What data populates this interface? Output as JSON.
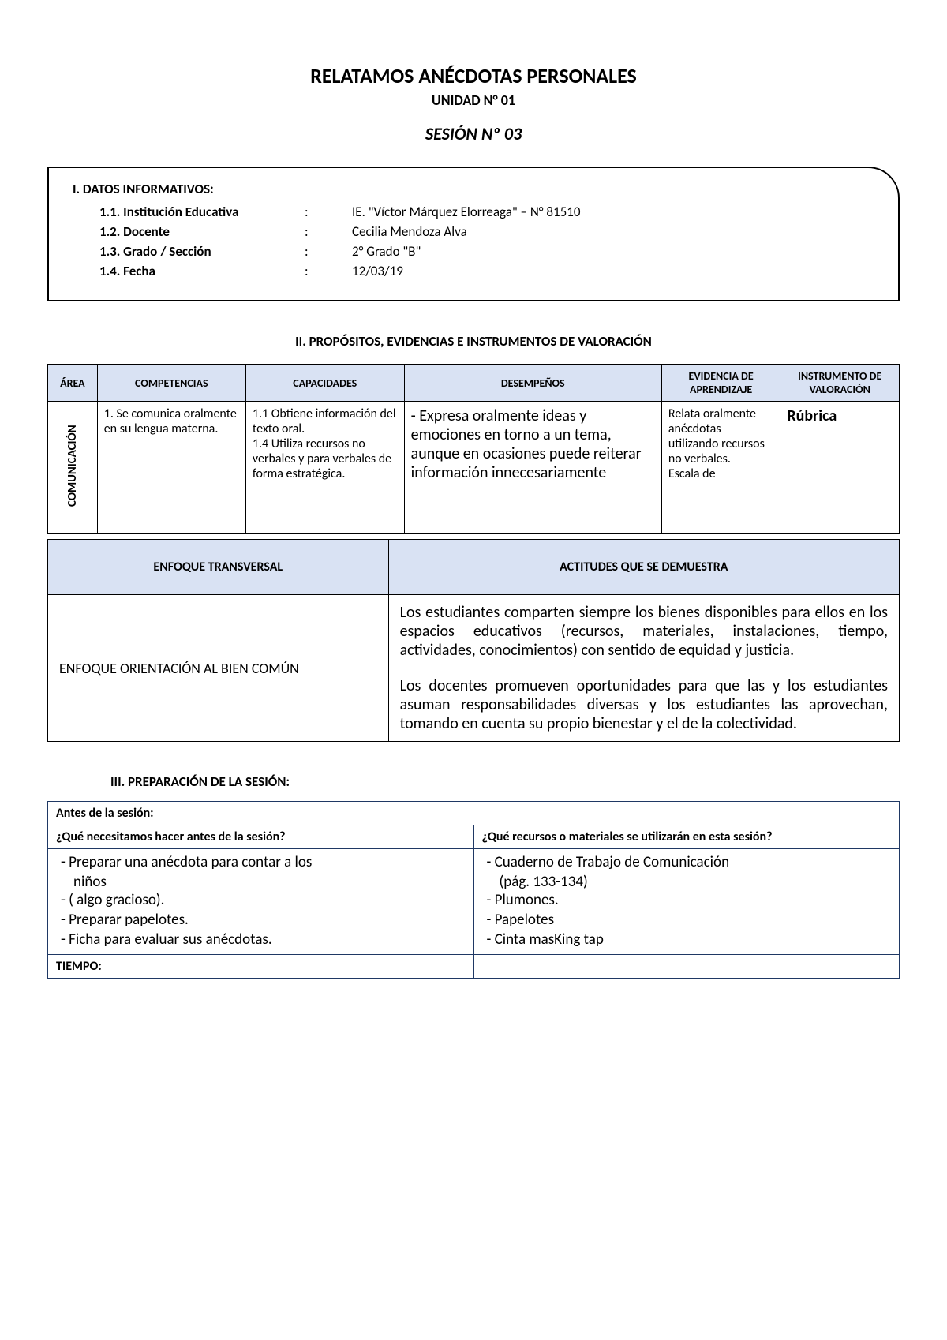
{
  "header": {
    "title": "RELATAMOS ANÉCDOTAS PERSONALES",
    "unit": "UNIDAD N° 01",
    "session": "SESIÓN Nº 03"
  },
  "section1": {
    "heading": "I.    DATOS INFORMATIVOS:",
    "rows": [
      {
        "label": "1.1.  Institución Educativa",
        "colon": ":",
        "value": "IE. \"Víctor Márquez Elorreaga\" – N° 81510"
      },
      {
        "label": "1.2.  Docente",
        "colon": ":",
        "value": "Cecilia Mendoza Alva"
      },
      {
        "label": "1.3.  Grado / Sección",
        "colon": ":",
        "value": "2° Grado \"B\""
      },
      {
        "label": "1.4.  Fecha",
        "colon": ":",
        "value": "12/03/19"
      }
    ]
  },
  "section2": {
    "heading": "II.        PROPÓSITOS, EVIDENCIAS E INSTRUMENTOS DE VALORACIÓN",
    "table1": {
      "headers": [
        "ÁREA",
        "COMPETENCIAS",
        "CAPACIDADES",
        "DESEMPEÑOS",
        "EVIDENCIA DE APRENDIZAJE",
        "INSTRUMENTO DE VALORACIÓN"
      ],
      "row": {
        "area": "COMUNICACIÓN",
        "competencias": "1.  Se comunica oralmente en su lengua materna.",
        "capacidades": "1.1 Obtiene información del texto oral.\n1.4 Utiliza recursos no verbales y para verbales de forma estratégica.",
        "desempenos": "-  Expresa oralmente ideas y emociones en torno a un tema, aunque en ocasiones puede reiterar información innecesariamente",
        "evidencia": "Relata oralmente anécdotas utilizando recursos no verbales.\nEscala de",
        "instrumento": "Rúbrica"
      }
    },
    "table2": {
      "headers": [
        "ENFOQUE TRANSVERSAL",
        "ACTITUDES QUE SE DEMUESTRA"
      ],
      "left": "ENFOQUE ORIENTACIÓN AL BIEN COMÚN",
      "right1": "Los estudiantes comparten siempre los bienes disponibles para ellos en los espacios educativos (recursos, materiales, instalaciones, tiempo, actividades, conocimientos) con sentido de equidad y justicia.",
      "right2": "Los docentes promueven oportunidades para que las y los estudiantes asuman responsabilidades diversas y los estudiantes las aprovechan, tomando en cuenta su propio bienestar y el de la colectividad."
    }
  },
  "section3": {
    "heading": "III.   PREPARACIÓN DE LA SESIÓN:",
    "table": {
      "h1": "Antes de la sesión:",
      "q1": "¿Qué necesitamos hacer antes de la sesión?",
      "q2": "¿Qué recursos o materiales se utilizarán en esta sesión?",
      "left_items": [
        "Preparar una anécdota para contar a los",
        "niños",
        " ( algo gracioso).",
        "Preparar papelotes.",
        "Ficha para evaluar sus anécdotas."
      ],
      "right_items": [
        "Cuaderno de Trabajo de Comunicación",
        "(pág. 133-134)",
        "Plumones.",
        "Papelotes",
        "Cinta masKing tap"
      ],
      "foot": "TIEMPO:"
    }
  }
}
